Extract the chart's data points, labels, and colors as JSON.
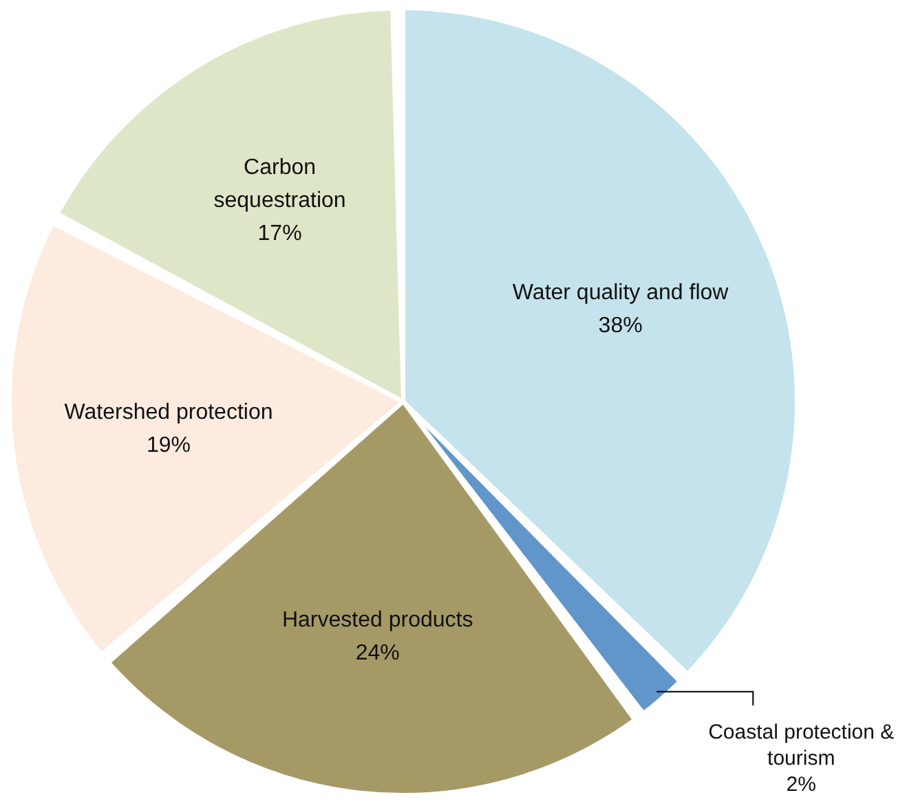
{
  "chart_data": {
    "type": "pie",
    "categories": [
      "Water quality and flow",
      "Coastal protection & tourism",
      "Harvested products",
      "Watershed protection",
      "Carbon sequestration"
    ],
    "values": [
      38,
      2,
      24,
      19,
      17
    ],
    "colors": [
      "#c4e3ec",
      "#6096c9",
      "#a59a66",
      "#fdebe0",
      "#dee6c8"
    ],
    "value_labels": [
      "38%",
      "2%",
      "24%",
      "19%",
      "17%"
    ],
    "legend": false
  }
}
